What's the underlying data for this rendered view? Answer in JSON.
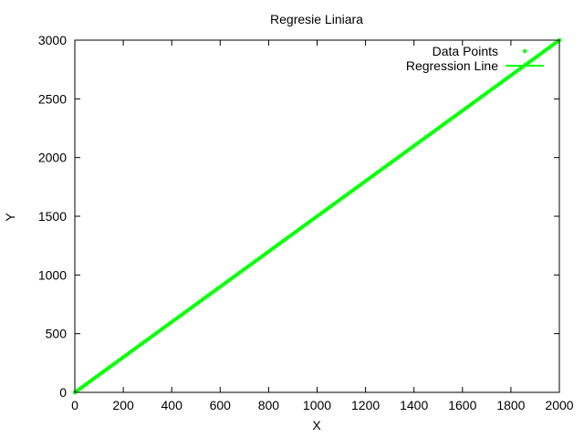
{
  "chart_data": {
    "type": "scatter",
    "title": "Regresie Liniara",
    "xlabel": "X",
    "ylabel": "Y",
    "xlim": [
      0,
      2000
    ],
    "ylim": [
      0,
      3000
    ],
    "xticks": [
      "0",
      "200",
      "400",
      "600",
      "800",
      "1000",
      "1200",
      "1400",
      "1600",
      "1800",
      "2000"
    ],
    "yticks": [
      "0",
      "500",
      "1000",
      "1500",
      "2000",
      "2500",
      "3000"
    ],
    "grid": false,
    "legend_position": "top-right",
    "series": [
      {
        "name": "Data Points",
        "kind": "points",
        "marker": "asterisk",
        "color": "#00ff00",
        "x_start": 0,
        "x_end": 2000,
        "x_step": 10,
        "relation": "y = 1.5 * x"
      },
      {
        "name": "Regression Line",
        "kind": "line",
        "color": "#00ff00",
        "slope": 1.5,
        "intercept": 0,
        "x_range": [
          0,
          2000
        ]
      }
    ]
  }
}
